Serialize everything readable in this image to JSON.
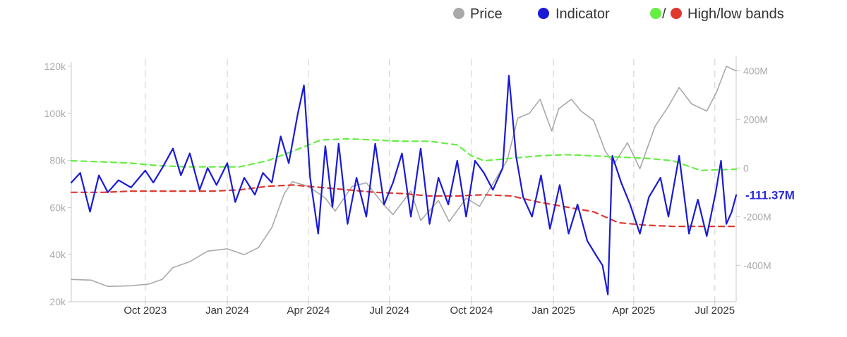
{
  "legend": {
    "price_label": "Price",
    "indicator_label": "Indicator",
    "bands_separator": "/",
    "bands_label": "High/low bands"
  },
  "colors": {
    "price": "#a9a9a9",
    "indicator": "#1a1ad6",
    "high_band": "#66ee44",
    "low_band": "#e0392f",
    "axis": "#c8c8c8",
    "grid": "#dddddd"
  },
  "last_value_label": "-111.37M",
  "chart_data": {
    "type": "line",
    "x_range": [
      "2023-07-10",
      "2025-07-25"
    ],
    "y_left": {
      "label": "",
      "min": 20000,
      "max": 120000,
      "ticks": [
        {
          "v": 120000,
          "t": "120k"
        },
        {
          "v": 100000,
          "t": "100k"
        },
        {
          "v": 80000,
          "t": "80k"
        },
        {
          "v": 60000,
          "t": "60k"
        },
        {
          "v": 40000,
          "t": "40k"
        },
        {
          "v": 20000,
          "t": "20k"
        }
      ]
    },
    "y_right": {
      "label": "",
      "min": -550,
      "max": 430,
      "unit": "M",
      "ticks": [
        {
          "v": 400,
          "t": "400M"
        },
        {
          "v": 200,
          "t": "200M"
        },
        {
          "v": 0,
          "t": "0"
        },
        {
          "v": -200,
          "t": "-200M"
        },
        {
          "v": -400,
          "t": "-400M"
        }
      ]
    },
    "x_ticks": [
      {
        "date": "2023-10-01",
        "t": "Oct 2023"
      },
      {
        "date": "2024-01-01",
        "t": "Jan 2024"
      },
      {
        "date": "2024-04-01",
        "t": "Apr 2024"
      },
      {
        "date": "2024-07-01",
        "t": "Jul 2024"
      },
      {
        "date": "2024-10-01",
        "t": "Oct 2024"
      },
      {
        "date": "2025-01-01",
        "t": "Jan 2025"
      },
      {
        "date": "2025-04-01",
        "t": "Apr 2025"
      },
      {
        "date": "2025-07-01",
        "t": "Jul 2025"
      }
    ],
    "grid": "vertical dashed",
    "legend_position": "top",
    "series": [
      {
        "name": "Price",
        "axis": "left",
        "style": "solid",
        "points": [
          [
            "2023-07-10",
            29500
          ],
          [
            "2023-08-01",
            29200
          ],
          [
            "2023-08-20",
            26500
          ],
          [
            "2023-09-15",
            26800
          ],
          [
            "2023-10-05",
            27500
          ],
          [
            "2023-10-20",
            29500
          ],
          [
            "2023-11-01",
            34500
          ],
          [
            "2023-11-20",
            37000
          ],
          [
            "2023-12-10",
            41500
          ],
          [
            "2024-01-01",
            42500
          ],
          [
            "2024-01-20",
            40000
          ],
          [
            "2024-02-05",
            43000
          ],
          [
            "2024-02-20",
            51500
          ],
          [
            "2024-03-05",
            66000
          ],
          [
            "2024-03-14",
            71000
          ],
          [
            "2024-04-01",
            69000
          ],
          [
            "2024-04-20",
            64000
          ],
          [
            "2024-05-01",
            58500
          ],
          [
            "2024-05-20",
            69000
          ],
          [
            "2024-06-05",
            70500
          ],
          [
            "2024-06-25",
            61000
          ],
          [
            "2024-07-05",
            57000
          ],
          [
            "2024-07-25",
            67000
          ],
          [
            "2024-08-05",
            54500
          ],
          [
            "2024-08-25",
            63000
          ],
          [
            "2024-09-06",
            54000
          ],
          [
            "2024-09-25",
            64000
          ],
          [
            "2024-10-10",
            60500
          ],
          [
            "2024-10-28",
            72000
          ],
          [
            "2024-11-10",
            80000
          ],
          [
            "2024-11-22",
            98000
          ],
          [
            "2024-12-05",
            100000
          ],
          [
            "2024-12-17",
            106000
          ],
          [
            "2024-12-30",
            92500
          ],
          [
            "2025-01-07",
            102000
          ],
          [
            "2025-01-21",
            106000
          ],
          [
            "2025-02-01",
            101000
          ],
          [
            "2025-02-15",
            97000
          ],
          [
            "2025-02-28",
            84000
          ],
          [
            "2025-03-10",
            78500
          ],
          [
            "2025-03-25",
            87500
          ],
          [
            "2025-04-08",
            76500
          ],
          [
            "2025-04-25",
            94500
          ],
          [
            "2025-05-10",
            103000
          ],
          [
            "2025-05-22",
            111000
          ],
          [
            "2025-06-05",
            104000
          ],
          [
            "2025-06-22",
            101000
          ],
          [
            "2025-07-03",
            109000
          ],
          [
            "2025-07-14",
            120000
          ],
          [
            "2025-07-25",
            118000
          ]
        ]
      },
      {
        "name": "Indicator",
        "axis": "right",
        "style": "solid",
        "points": [
          [
            "2023-07-10",
            -60
          ],
          [
            "2023-07-20",
            -20
          ],
          [
            "2023-07-31",
            -180
          ],
          [
            "2023-08-10",
            -30
          ],
          [
            "2023-08-20",
            -100
          ],
          [
            "2023-09-01",
            -50
          ],
          [
            "2023-09-15",
            -80
          ],
          [
            "2023-10-01",
            -10
          ],
          [
            "2023-10-10",
            -60
          ],
          [
            "2023-10-20",
            0
          ],
          [
            "2023-11-01",
            80
          ],
          [
            "2023-11-10",
            -30
          ],
          [
            "2023-11-20",
            60
          ],
          [
            "2023-12-01",
            -90
          ],
          [
            "2023-12-10",
            0
          ],
          [
            "2023-12-20",
            -70
          ],
          [
            "2024-01-01",
            20
          ],
          [
            "2024-01-10",
            -140
          ],
          [
            "2024-01-20",
            -40
          ],
          [
            "2024-02-01",
            -110
          ],
          [
            "2024-02-10",
            -20
          ],
          [
            "2024-02-20",
            -60
          ],
          [
            "2024-03-01",
            130
          ],
          [
            "2024-03-10",
            20
          ],
          [
            "2024-03-20",
            220
          ],
          [
            "2024-03-27",
            340
          ],
          [
            "2024-04-03",
            -40
          ],
          [
            "2024-04-12",
            -270
          ],
          [
            "2024-04-20",
            90
          ],
          [
            "2024-04-28",
            -160
          ],
          [
            "2024-05-05",
            100
          ],
          [
            "2024-05-15",
            -230
          ],
          [
            "2024-05-25",
            -40
          ],
          [
            "2024-06-05",
            -200
          ],
          [
            "2024-06-15",
            100
          ],
          [
            "2024-06-25",
            -150
          ],
          [
            "2024-07-05",
            -60
          ],
          [
            "2024-07-15",
            60
          ],
          [
            "2024-07-25",
            -200
          ],
          [
            "2024-08-05",
            80
          ],
          [
            "2024-08-15",
            -230
          ],
          [
            "2024-08-25",
            -40
          ],
          [
            "2024-09-05",
            -150
          ],
          [
            "2024-09-15",
            30
          ],
          [
            "2024-09-25",
            -200
          ],
          [
            "2024-10-05",
            30
          ],
          [
            "2024-10-15",
            -20
          ],
          [
            "2024-10-25",
            -90
          ],
          [
            "2024-11-05",
            0
          ],
          [
            "2024-11-12",
            380
          ],
          [
            "2024-11-20",
            50
          ],
          [
            "2024-11-28",
            -120
          ],
          [
            "2024-12-08",
            -200
          ],
          [
            "2024-12-18",
            -30
          ],
          [
            "2024-12-28",
            -250
          ],
          [
            "2025-01-08",
            -70
          ],
          [
            "2025-01-18",
            -270
          ],
          [
            "2025-01-28",
            -150
          ],
          [
            "2025-02-08",
            -300
          ],
          [
            "2025-02-18",
            -360
          ],
          [
            "2025-02-25",
            -400
          ],
          [
            "2025-03-03",
            -520
          ],
          [
            "2025-03-08",
            50
          ],
          [
            "2025-03-18",
            -60
          ],
          [
            "2025-03-28",
            -150
          ],
          [
            "2025-04-08",
            -270
          ],
          [
            "2025-04-18",
            -120
          ],
          [
            "2025-05-01",
            -40
          ],
          [
            "2025-05-10",
            -200
          ],
          [
            "2025-05-22",
            50
          ],
          [
            "2025-06-02",
            -270
          ],
          [
            "2025-06-12",
            -130
          ],
          [
            "2025-06-22",
            -280
          ],
          [
            "2025-07-02",
            -100
          ],
          [
            "2025-07-08",
            30
          ],
          [
            "2025-07-14",
            -230
          ],
          [
            "2025-07-20",
            -180
          ],
          [
            "2025-07-25",
            -111.37
          ]
        ]
      },
      {
        "name": "High band",
        "axis": "right",
        "style": "dashed",
        "points": [
          [
            "2023-07-10",
            30
          ],
          [
            "2023-08-15",
            25
          ],
          [
            "2023-09-15",
            20
          ],
          [
            "2023-10-15",
            10
          ],
          [
            "2023-11-15",
            5
          ],
          [
            "2023-12-15",
            5
          ],
          [
            "2024-01-15",
            5
          ],
          [
            "2024-02-15",
            30
          ],
          [
            "2024-03-15",
            70
          ],
          [
            "2024-04-15",
            115
          ],
          [
            "2024-05-15",
            120
          ],
          [
            "2024-06-15",
            115
          ],
          [
            "2024-07-15",
            110
          ],
          [
            "2024-08-15",
            110
          ],
          [
            "2024-09-15",
            95
          ],
          [
            "2024-10-01",
            50
          ],
          [
            "2024-10-15",
            30
          ],
          [
            "2024-11-15",
            40
          ],
          [
            "2024-12-15",
            50
          ],
          [
            "2025-01-15",
            55
          ],
          [
            "2025-02-15",
            50
          ],
          [
            "2025-03-15",
            45
          ],
          [
            "2025-04-15",
            40
          ],
          [
            "2025-05-15",
            30
          ],
          [
            "2025-06-15",
            -10
          ],
          [
            "2025-07-25",
            -5
          ]
        ]
      },
      {
        "name": "Low band",
        "axis": "right",
        "style": "dashed",
        "points": [
          [
            "2023-07-10",
            -100
          ],
          [
            "2023-08-15",
            -100
          ],
          [
            "2023-09-15",
            -95
          ],
          [
            "2023-10-15",
            -95
          ],
          [
            "2023-11-15",
            -95
          ],
          [
            "2023-12-15",
            -95
          ],
          [
            "2024-01-15",
            -90
          ],
          [
            "2024-02-15",
            -75
          ],
          [
            "2024-03-15",
            -70
          ],
          [
            "2024-04-15",
            -80
          ],
          [
            "2024-05-15",
            -90
          ],
          [
            "2024-06-15",
            -100
          ],
          [
            "2024-07-15",
            -105
          ],
          [
            "2024-08-15",
            -115
          ],
          [
            "2024-09-15",
            -115
          ],
          [
            "2024-10-15",
            -110
          ],
          [
            "2024-11-15",
            -115
          ],
          [
            "2024-12-15",
            -140
          ],
          [
            "2025-01-15",
            -160
          ],
          [
            "2025-02-15",
            -180
          ],
          [
            "2025-03-15",
            -225
          ],
          [
            "2025-04-15",
            -235
          ],
          [
            "2025-05-15",
            -240
          ],
          [
            "2025-06-15",
            -240
          ],
          [
            "2025-07-25",
            -240
          ]
        ]
      }
    ]
  }
}
